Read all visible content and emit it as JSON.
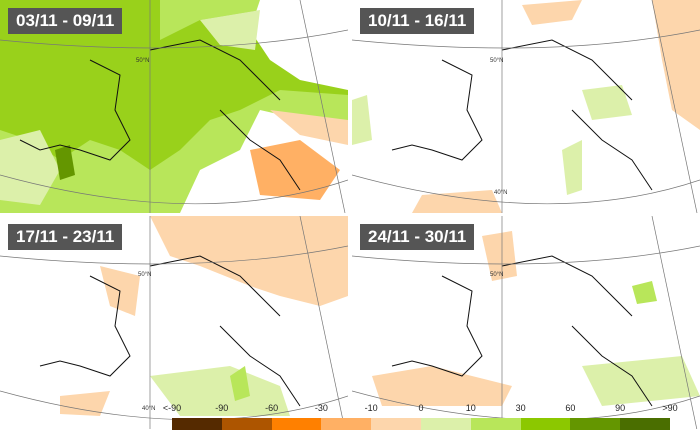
{
  "panels": [
    {
      "label": "03/11 - 09/11"
    },
    {
      "label": "10/11 - 16/11"
    },
    {
      "label": "17/11 - 23/11"
    },
    {
      "label": "24/11 - 30/11"
    }
  ],
  "lat_labels": {
    "n50": "50°N",
    "n40": "40°N"
  },
  "legend": {
    "ticks": [
      "<-90",
      "-90",
      "-60",
      "-30",
      "-10",
      "0",
      "10",
      "30",
      "60",
      "90",
      ">90"
    ],
    "colors": [
      "#552a00",
      "#ad5500",
      "#ff8000",
      "#ffb064",
      "#fdd6ac",
      "#dcf0aa",
      "#b8e65a",
      "#8cc800",
      "#649600",
      "#4a6e00"
    ]
  }
}
